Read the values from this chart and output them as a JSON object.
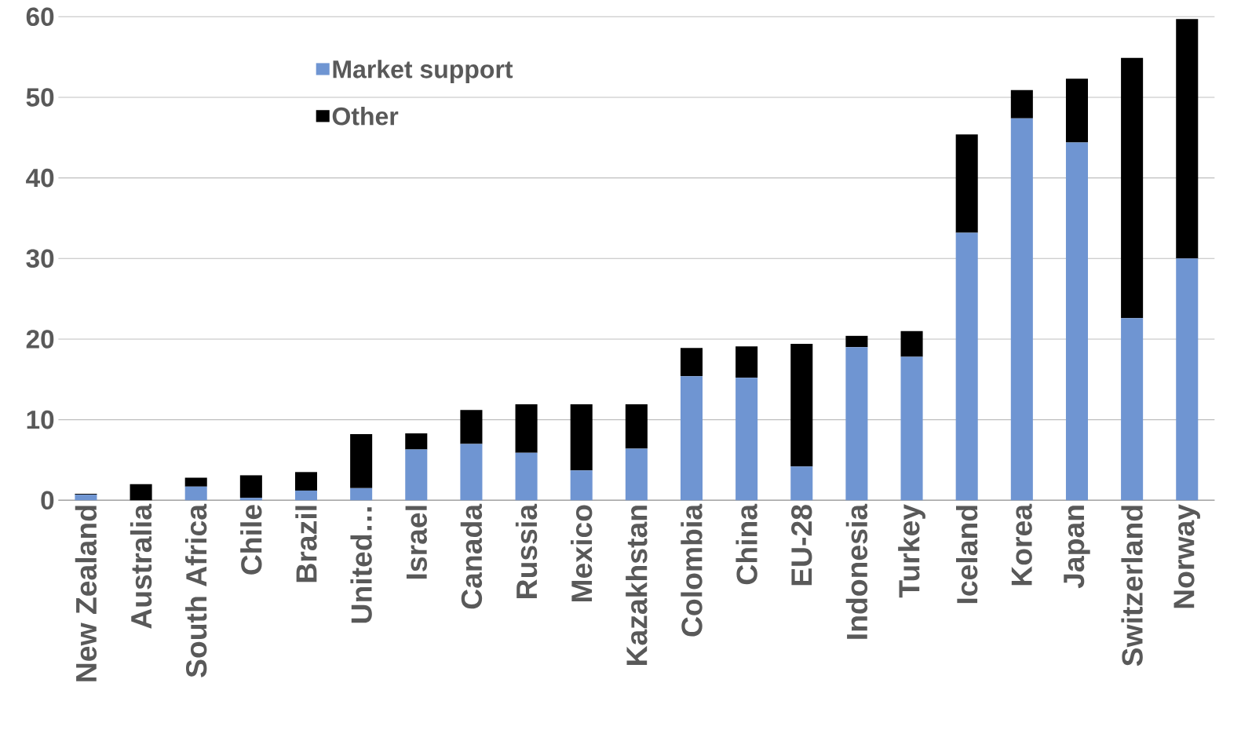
{
  "chart_data": {
    "type": "bar",
    "stacked": true,
    "categories": [
      "New Zealand",
      "Australia",
      "South Africa",
      "Chile",
      "Brazil",
      "United…",
      "Israel",
      "Canada",
      "Russia",
      "Mexico",
      "Kazakhstan",
      "Colombia",
      "China",
      "EU-28",
      "Indonesia",
      "Turkey",
      "Iceland",
      "Korea",
      "Japan",
      "Switzerland",
      "Norway"
    ],
    "series": [
      {
        "name": "Market support",
        "color": "#6f95d2",
        "values": [
          0.7,
          null,
          1.7,
          0.3,
          1.2,
          1.5,
          6.3,
          7.0,
          5.9,
          3.7,
          6.4,
          15.4,
          15.2,
          4.2,
          19.0,
          17.8,
          33.2,
          47.4,
          44.4,
          22.6,
          30.0
        ]
      },
      {
        "name": "Other",
        "color": "#000000",
        "values": [
          0.1,
          2.0,
          1.1,
          2.8,
          2.3,
          6.7,
          2.0,
          4.2,
          6.0,
          8.2,
          5.5,
          3.5,
          3.9,
          15.2,
          1.4,
          3.2,
          12.2,
          3.5,
          7.9,
          32.3,
          29.7
        ]
      }
    ],
    "ylim": [
      0,
      60
    ],
    "yticks": [
      0,
      10,
      20,
      30,
      40,
      50,
      60
    ],
    "grid": "y",
    "legend": "top left"
  }
}
